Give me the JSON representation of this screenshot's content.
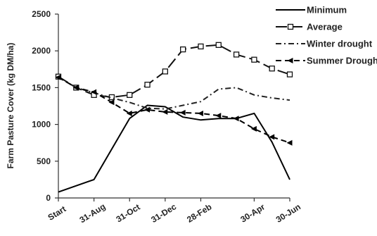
{
  "chart_data": {
    "type": "line",
    "title": "",
    "xlabel": "",
    "ylabel": "Farm Pasture Cover (kg DM/ha)",
    "ylim": [
      0,
      2500
    ],
    "yticks": [
      0,
      500,
      1000,
      1500,
      2000,
      2500
    ],
    "grid": false,
    "legend_position": "top-right",
    "x_tick_labels": [
      "Start",
      "31-Aug",
      "31-Oct",
      "31-Dec",
      "28-Feb",
      "30-Apr",
      "30-Jun"
    ],
    "x": [
      "Start",
      "",
      "31-Aug",
      "",
      "31-Oct",
      "",
      "31-Dec",
      "",
      "28-Feb",
      "",
      "",
      "30-Apr",
      "",
      "30-Jun"
    ],
    "series": [
      {
        "name": "Minimum",
        "style": "solid",
        "marker": "none",
        "color": "#000000",
        "values": [
          80,
          null,
          250,
          null,
          1080,
          1260,
          1240,
          1100,
          1060,
          1080,
          1080,
          1150,
          760,
          250
        ]
      },
      {
        "name": "Average",
        "style": "long-dash",
        "marker": "open-square",
        "color": "#111111",
        "values": [
          1650,
          1500,
          1400,
          1370,
          1400,
          1540,
          1720,
          2020,
          2060,
          2080,
          1950,
          1880,
          1760,
          1680
        ]
      },
      {
        "name": "Winter drought",
        "style": "dash-dot",
        "marker": "none",
        "color": "#222222",
        "values": [
          1640,
          1500,
          1430,
          1360,
          1300,
          1220,
          1210,
          1260,
          1310,
          1480,
          1500,
          1400,
          1360,
          1330
        ]
      },
      {
        "name": "Summer Drought",
        "style": "dash",
        "marker": "filled-triangle",
        "color": "#000000",
        "values": [
          1640,
          1500,
          1440,
          1300,
          1150,
          1200,
          1170,
          1160,
          1150,
          1120,
          1080,
          940,
          830,
          750
        ]
      }
    ]
  }
}
